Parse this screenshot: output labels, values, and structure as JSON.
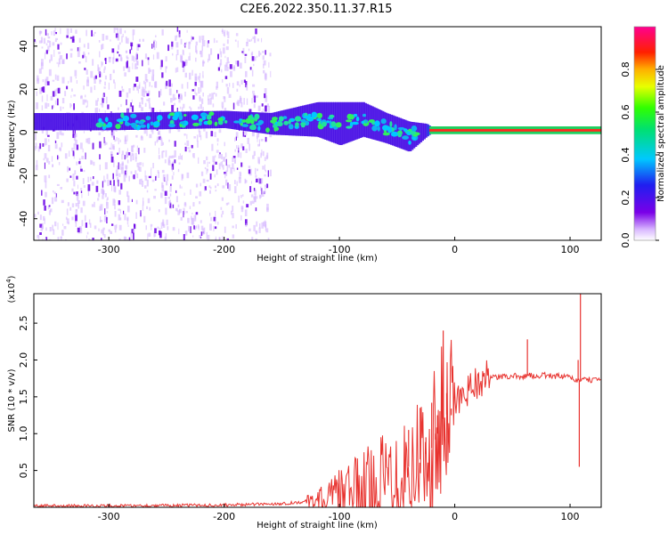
{
  "title": "C2E6.2022.350.11.37.R15",
  "spectrogram": {
    "type": "heatmap",
    "xlabel": "Height of straight line (km)",
    "ylabel": "Frequency (Hz)",
    "xlim": [
      -365,
      127
    ],
    "ylim": [
      -50,
      49
    ],
    "xticks": [
      -300,
      -200,
      -100,
      0,
      100
    ],
    "yticks": [
      -40,
      -20,
      0,
      20,
      40
    ],
    "colorbar": {
      "label": "Normalized spectral amplitude",
      "ticks": [
        "0.0",
        "0.2",
        "0.4",
        "0.6",
        "0.8"
      ],
      "range": [
        0,
        1
      ],
      "colormap": "rainbow (purple-blue-cyan-green-yellow-red-magenta)"
    },
    "band": [
      {
        "x": -365,
        "center": 5,
        "halfwidth": 4
      },
      {
        "x": -300,
        "center": 5,
        "halfwidth": 4
      },
      {
        "x": -200,
        "center": 6,
        "halfwidth": 4
      },
      {
        "x": -160,
        "center": 4,
        "halfwidth": 5
      },
      {
        "x": -120,
        "center": 6,
        "halfwidth": 8
      },
      {
        "x": -100,
        "center": 4,
        "halfwidth": 10
      },
      {
        "x": -80,
        "center": 6,
        "halfwidth": 8
      },
      {
        "x": -60,
        "center": 2,
        "halfwidth": 7
      },
      {
        "x": -40,
        "center": -2,
        "halfwidth": 7
      },
      {
        "x": -25,
        "center": 1,
        "halfwidth": 3
      },
      {
        "x": -20,
        "center": 1,
        "halfwidth": 1
      },
      {
        "x": 127,
        "center": 1,
        "halfwidth": 1
      }
    ]
  },
  "snr": {
    "type": "line",
    "xlabel": "Height of straight line (km)",
    "ylabel": "SNR (10 * v/v)",
    "scale_label": "(x10",
    "scale_exp": "4",
    "scale_close": ")",
    "xlim": [
      -365,
      127
    ],
    "ylim": [
      0,
      2.9
    ],
    "xticks": [
      -300,
      -200,
      -100,
      0,
      100
    ],
    "yticks": [
      "0.5",
      "1.0",
      "1.5",
      "2.0",
      "2.5"
    ],
    "color": "#e8332f",
    "series": [
      {
        "x": [
          -365,
          -300,
          -200,
          -150,
          -125,
          -110,
          -100,
          -90,
          -80,
          -70,
          -60,
          -50,
          -40,
          -30,
          -20,
          -15,
          -10,
          0,
          10,
          20,
          30,
          40,
          50,
          60,
          70,
          80,
          90,
          100,
          105,
          110,
          115,
          127
        ],
        "y": [
          0.02,
          0.02,
          0.03,
          0.05,
          0.08,
          0.12,
          0.18,
          0.22,
          0.25,
          0.3,
          0.38,
          0.45,
          0.55,
          0.65,
          0.8,
          1.0,
          1.2,
          1.4,
          1.6,
          1.72,
          1.76,
          1.77,
          1.78,
          1.78,
          1.79,
          1.79,
          1.78,
          1.76,
          1.73,
          1.72,
          1.73,
          1.73
        ]
      }
    ],
    "spikes": [
      {
        "x": -40,
        "y": 1.05
      },
      {
        "x": -30,
        "y": 1.35
      },
      {
        "x": -25,
        "y": 0.95
      },
      {
        "x": -20,
        "y": 1.42
      },
      {
        "x": -17,
        "y": 1.0
      },
      {
        "x": -15,
        "y": 1.25
      },
      {
        "x": -10,
        "y": 2.4
      },
      {
        "x": -7,
        "y": 1.55
      },
      {
        "x": -3,
        "y": 1.25
      },
      {
        "x": 63,
        "y": 2.28
      },
      {
        "x": 107,
        "y": 2.0
      },
      {
        "x": 108,
        "y": 0.55
      },
      {
        "x": 109,
        "y": 2.9
      }
    ]
  }
}
